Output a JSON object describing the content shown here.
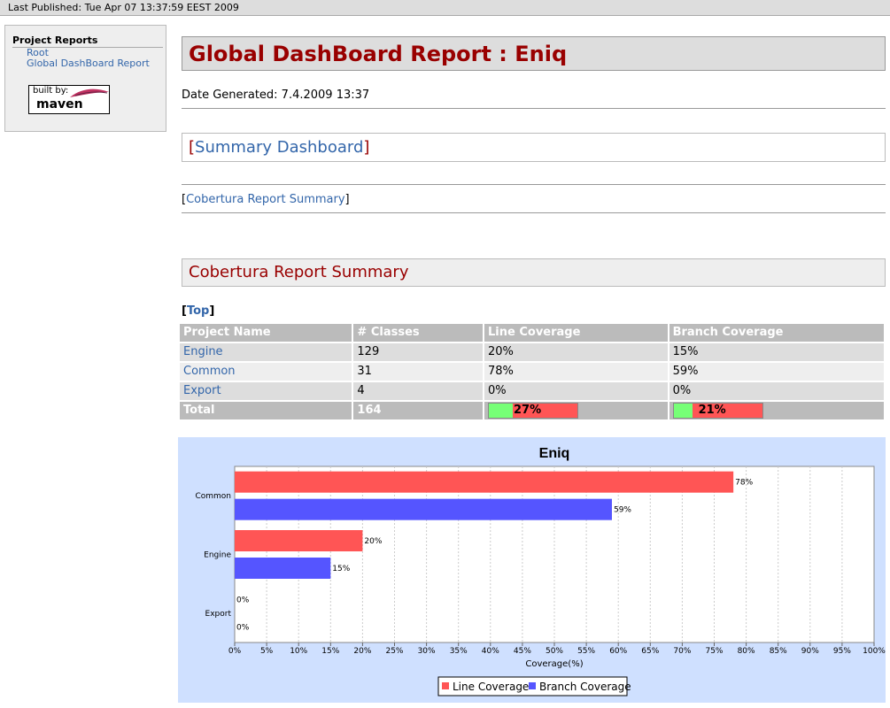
{
  "header": {
    "last_published": "Last Published: Tue Apr 07 13:37:59 EEST 2009"
  },
  "sidebar": {
    "heading": "Project Reports",
    "links": [
      "Root",
      "Global DashBoard Report"
    ],
    "logo_built_by": "built by:",
    "logo_name": "maven"
  },
  "main": {
    "title": "Global DashBoard Report : Eniq",
    "date_generated": "Date Generated: 7.4.2009 13:37",
    "summary_link": "Summary Dashboard",
    "cobertura_link": "Cobertura Report Summary",
    "section_title": "Cobertura Report Summary",
    "top_link": "Top"
  },
  "table": {
    "headers": [
      "Project Name",
      "# Classes",
      "Line Coverage",
      "Branch Coverage"
    ],
    "rows": [
      {
        "name": "Engine",
        "classes": "129",
        "line": "20%",
        "branch": "15%"
      },
      {
        "name": "Common",
        "classes": "31",
        "line": "78%",
        "branch": "59%"
      },
      {
        "name": "Export",
        "classes": "4",
        "line": "0%",
        "branch": "0%"
      }
    ],
    "total": {
      "label": "Total",
      "classes": "164",
      "line": "27%",
      "branch": "21%",
      "line_value": 27,
      "branch_value": 21
    }
  },
  "colors": {
    "line_coverage": "#ff5555",
    "branch_coverage": "#5555ff",
    "covered": "#77ff77",
    "uncovered": "#ff5555"
  },
  "chart_data": {
    "type": "bar",
    "orientation": "horizontal",
    "title": "Eniq",
    "categories": [
      "Common",
      "Engine",
      "Export"
    ],
    "series": [
      {
        "name": "Line Coverage",
        "values": [
          78,
          20,
          0
        ]
      },
      {
        "name": "Branch Coverage",
        "values": [
          59,
          15,
          0
        ]
      }
    ],
    "xlabel": "Coverage(%)",
    "ylabel": "",
    "xlim": [
      0,
      100
    ],
    "xticks": [
      0,
      5,
      10,
      15,
      20,
      25,
      30,
      35,
      40,
      45,
      50,
      55,
      60,
      65,
      70,
      75,
      80,
      85,
      90,
      95,
      100
    ],
    "grid": true,
    "legend": "bottom"
  }
}
